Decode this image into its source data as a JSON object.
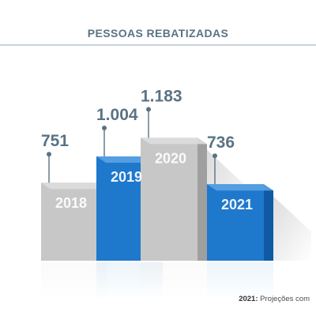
{
  "colors": {
    "gray_front": "#c7c7c7",
    "gray_side": "#9f9f9f",
    "gray_top": "#dddddd",
    "blue_front": "#1e78cc",
    "blue_side": "#0f5aa3",
    "blue_top": "#5aa2e3",
    "value_text": "#5a7384",
    "marker": "#5a7384",
    "title": "#5a7384"
  },
  "footnote": {
    "year": "2021:",
    "text": "Projeções com"
  },
  "chart_data": {
    "type": "bar",
    "title": "PESSOAS REBATIZADAS",
    "categories": [
      "2018",
      "2019",
      "2020",
      "2021"
    ],
    "values": [
      751,
      1004,
      1183,
      736
    ],
    "value_labels": [
      "751",
      "1.004",
      "1.183",
      "736"
    ],
    "bar_colors": [
      "gray",
      "blue",
      "gray",
      "blue"
    ],
    "xlabel": "",
    "ylabel": "",
    "grid": false,
    "legend": "none"
  }
}
